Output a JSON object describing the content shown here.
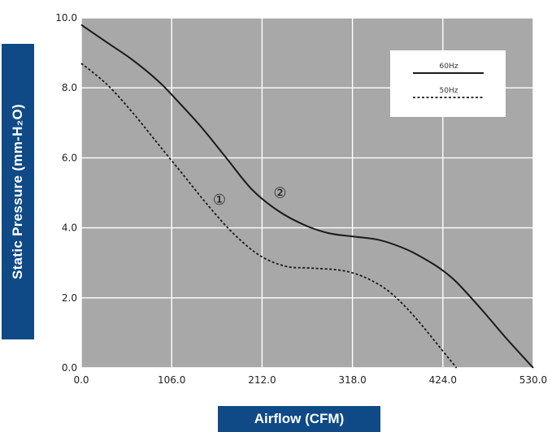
{
  "chart_data": {
    "type": "line",
    "xlabel": "Airflow (CFM)",
    "ylabel": "Static Pressure (mm-H₂O)",
    "xlim": [
      0,
      530
    ],
    "ylim": [
      0,
      10
    ],
    "x_ticks": [
      "0.0",
      "106.0",
      "212.0",
      "318.0",
      "424.0",
      "530.0"
    ],
    "y_ticks": [
      "0.0",
      "2.0",
      "4.0",
      "6.0",
      "8.0",
      "10.0"
    ],
    "grid": true,
    "legend_position": "top-right",
    "background_color": "#a8a8a8",
    "series": [
      {
        "name": "60Hz",
        "style": "solid",
        "color": "#1a1a1a",
        "x": [
          0,
          30,
          60,
          90,
          110,
          140,
          170,
          200,
          230,
          260,
          290,
          320,
          350,
          380,
          400,
          420,
          440,
          470,
          500,
          530
        ],
        "y": [
          9.8,
          9.3,
          8.8,
          8.2,
          7.7,
          6.9,
          6.0,
          5.1,
          4.5,
          4.1,
          3.85,
          3.75,
          3.65,
          3.4,
          3.15,
          2.85,
          2.45,
          1.65,
          0.8,
          0.0
        ]
      },
      {
        "name": "50Hz",
        "style": "dashed",
        "color": "#1a1a1a",
        "x": [
          0,
          30,
          60,
          90,
          120,
          150,
          180,
          210,
          240,
          270,
          300,
          320,
          340,
          360,
          380,
          400,
          420,
          440
        ],
        "y": [
          8.7,
          8.1,
          7.3,
          6.4,
          5.5,
          4.6,
          3.8,
          3.2,
          2.9,
          2.85,
          2.8,
          2.7,
          2.5,
          2.2,
          1.75,
          1.2,
          0.6,
          0.0
        ]
      }
    ],
    "annotations": [
      {
        "text": "①",
        "x": 162,
        "y": 4.8
      },
      {
        "text": "②",
        "x": 233,
        "y": 5.0
      }
    ]
  }
}
